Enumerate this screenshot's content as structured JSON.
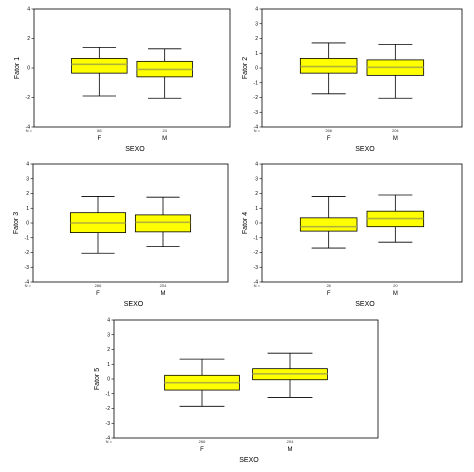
{
  "chart_data": [
    {
      "type": "box",
      "ylabel": "Fator 1",
      "xlabel": "SEXO",
      "ylim": [
        -4,
        4
      ],
      "yticks": [
        4,
        2,
        0,
        -2,
        -4
      ],
      "n_prefix": "N =",
      "categories": [
        "F",
        "M"
      ],
      "n_labels": [
        "86",
        "24"
      ],
      "boxes": [
        {
          "min": -1.9,
          "q1": -0.35,
          "median": 0.25,
          "q3": 0.65,
          "max": 1.4
        },
        {
          "min": -2.05,
          "q1": -0.6,
          "median": -0.1,
          "q3": 0.45,
          "max": 1.3
        }
      ]
    },
    {
      "type": "box",
      "ylabel": "Fator 2",
      "xlabel": "SEXO",
      "ylim": [
        -4,
        4
      ],
      "yticks": [
        4,
        3,
        2,
        1,
        0,
        -1,
        -2,
        -3,
        -4
      ],
      "n_prefix": "N =",
      "categories": [
        "F",
        "M"
      ],
      "n_labels": [
        "266",
        "204"
      ],
      "boxes": [
        {
          "min": -1.75,
          "q1": -0.35,
          "median": 0.1,
          "q3": 0.65,
          "max": 1.7
        },
        {
          "min": -2.05,
          "q1": -0.5,
          "median": 0.05,
          "q3": 0.55,
          "max": 1.6
        }
      ]
    },
    {
      "type": "box",
      "ylabel": "Fator 3",
      "xlabel": "SEXO",
      "ylim": [
        -4,
        4
      ],
      "yticks": [
        4,
        3,
        2,
        1,
        0,
        -1,
        -2,
        -3,
        -4
      ],
      "n_prefix": "N =",
      "categories": [
        "F",
        "M"
      ],
      "n_labels": [
        "266",
        "204"
      ],
      "boxes": [
        {
          "min": -2.05,
          "q1": -0.65,
          "median": 0.0,
          "q3": 0.7,
          "max": 1.8
        },
        {
          "min": -1.6,
          "q1": -0.6,
          "median": 0.05,
          "q3": 0.55,
          "max": 1.75
        }
      ]
    },
    {
      "type": "box",
      "ylabel": "Fator 4",
      "xlabel": "SEXO",
      "ylim": [
        -4,
        4
      ],
      "yticks": [
        4,
        3,
        2,
        1,
        0,
        -1,
        -2,
        -3,
        -4
      ],
      "n_prefix": "N =",
      "categories": [
        "F",
        "M"
      ],
      "n_labels": [
        "26",
        "20"
      ],
      "boxes": [
        {
          "min": -1.7,
          "q1": -0.55,
          "median": -0.25,
          "q3": 0.35,
          "max": 1.8
        },
        {
          "min": -1.3,
          "q1": -0.25,
          "median": 0.3,
          "q3": 0.8,
          "max": 1.9
        }
      ]
    },
    {
      "type": "box",
      "ylabel": "Fator 5",
      "xlabel": "SEXO",
      "ylim": [
        -4,
        4
      ],
      "yticks": [
        4,
        3,
        2,
        1,
        0,
        -1,
        -2,
        -3,
        -4
      ],
      "n_prefix": "N =",
      "categories": [
        "F",
        "M"
      ],
      "n_labels": [
        "266",
        "204"
      ],
      "boxes": [
        {
          "min": -1.85,
          "q1": -0.75,
          "median": -0.25,
          "q3": 0.25,
          "max": 1.35
        },
        {
          "min": -1.25,
          "q1": -0.05,
          "median": 0.35,
          "q3": 0.7,
          "max": 1.75
        }
      ]
    }
  ],
  "colors": {
    "box_fill": "#ffff00",
    "median_line": "#b3b33a",
    "frame": "#000000"
  }
}
